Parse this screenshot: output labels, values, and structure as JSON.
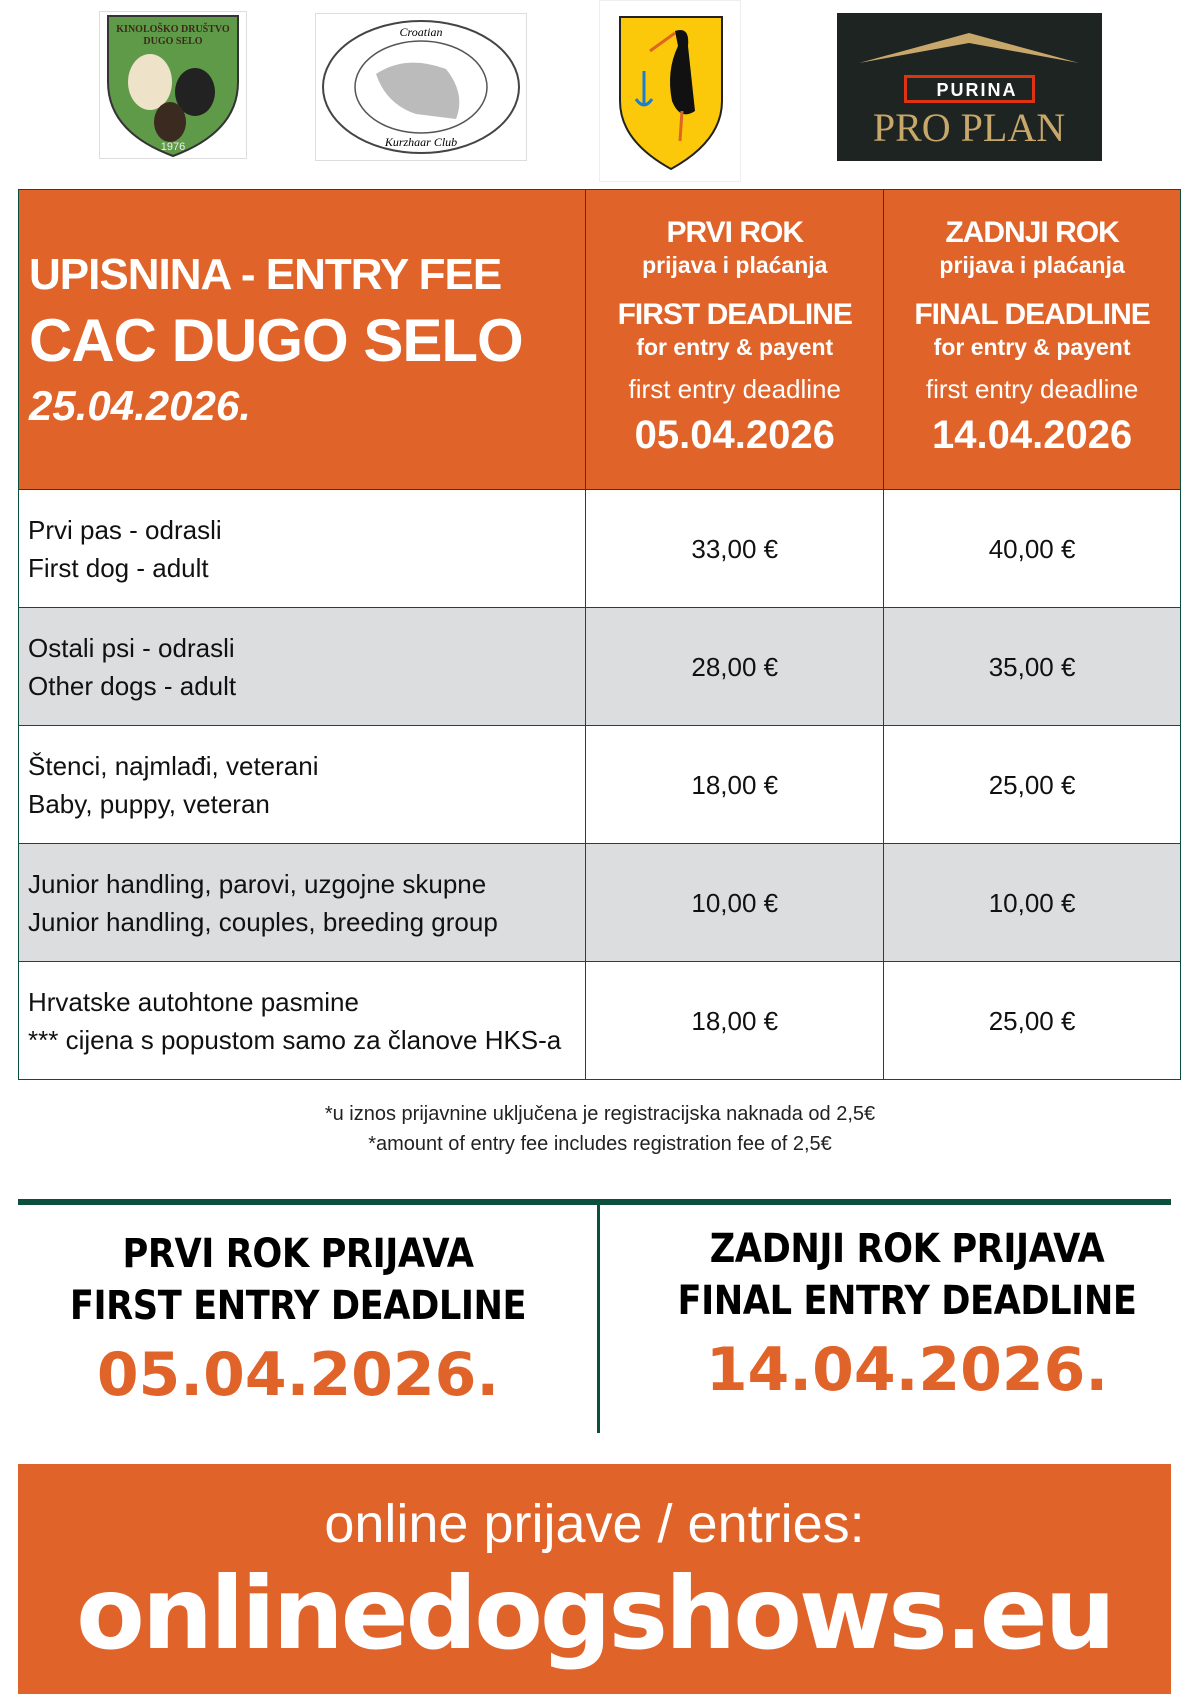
{
  "logos": {
    "club": "KINOLOŠKO DRUŠTVO DUGO SELO 1976",
    "kurzhaar": "Croatian Kurzhaar Club",
    "coat_of_arms": "Dugo Selo coat of arms",
    "sponsor": "PURINA PRO PLAN"
  },
  "colors": {
    "accent": "#e0632a",
    "border": "#0b4f3f",
    "row_alt": "#dcdddf"
  },
  "header": {
    "title1": "UPISNINA - ENTRY FEE",
    "title2": "CAC DUGO SELO",
    "date": "25.04.2026.",
    "col1": {
      "t1": "PRVI ROK",
      "s1": "prijava i plaćanja",
      "t2": "FIRST DEADLINE",
      "s2": "for entry & payent",
      "l": "first entry deadline",
      "d": "05.04.2026"
    },
    "col2": {
      "t1": "ZADNJI ROK",
      "s1": "prijava i plaćanja",
      "t2": "FINAL DEADLINE",
      "s2": "for entry & payent",
      "l": "first entry deadline",
      "d": "14.04.2026"
    }
  },
  "rows": [
    {
      "l1": "Prvi pas - odrasli",
      "l2": "First dog - adult",
      "first": "33,00 €",
      "final": "40,00 €"
    },
    {
      "l1": "Ostali psi - odrasli",
      "l2": "Other dogs - adult",
      "first": "28,00 €",
      "final": "35,00 €"
    },
    {
      "l1": "Štenci, najmlađi, veterani",
      "l2": "Baby, puppy, veteran",
      "first": "18,00 €",
      "final": "25,00 €"
    },
    {
      "l1": "Junior handling, parovi, uzgojne skupne",
      "l2": "Junior handling, couples, breeding group",
      "first": "10,00 €",
      "final": "10,00 €"
    },
    {
      "l1": "Hrvatske autohtone pasmine",
      "l2": "*** cijena s popustom samo za članove HKS-a",
      "first": "18,00 €",
      "final": "25,00 €"
    }
  ],
  "footnote": {
    "hr": "*u iznos prijavnine uključena je registracijska naknada od 2,5€",
    "en": "*amount of entry fee includes registration fee of 2,5€"
  },
  "deadlines": {
    "first": {
      "l1": "PRVI ROK PRIJAVA",
      "l2": "FIRST ENTRY DEADLINE",
      "d": "05.04.2026."
    },
    "final": {
      "l1": "ZADNJI ROK PRIJAVA",
      "l2": "FINAL ENTRY DEADLINE",
      "d": "14.04.2026."
    }
  },
  "online": {
    "label": "online prijave / entries:",
    "url": "onlinedogshows.eu"
  }
}
